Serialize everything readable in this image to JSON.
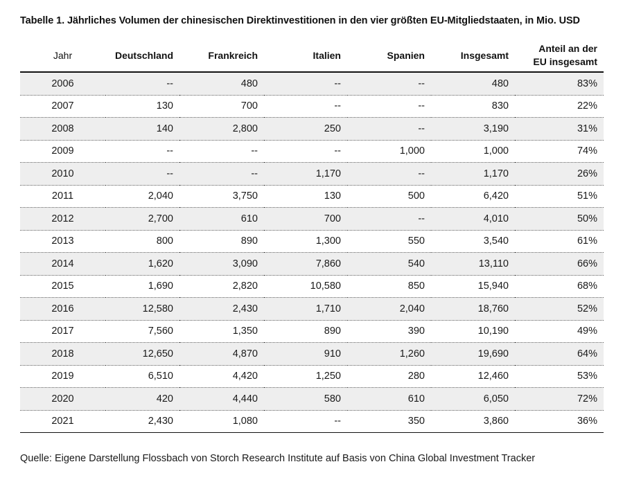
{
  "title": "Tabelle 1. Jährliches Volumen der chinesischen Direktinvestitionen in den vier größten EU-Mitgliedstaaten, in Mio. USD",
  "headers": {
    "jahr": "Jahr",
    "deutschland": "Deutschland",
    "frankreich": "Frankreich",
    "italien": "Italien",
    "spanien": "Spanien",
    "insgesamt": "Insgesamt",
    "anteil_line1": "Anteil an der",
    "anteil_line2": "EU insgesamt"
  },
  "rows": [
    {
      "jahr": "2006",
      "deutschland": "--",
      "frankreich": "480",
      "italien": "--",
      "spanien": "--",
      "insgesamt": "480",
      "anteil": "83%"
    },
    {
      "jahr": "2007",
      "deutschland": "130",
      "frankreich": "700",
      "italien": "--",
      "spanien": "--",
      "insgesamt": "830",
      "anteil": "22%"
    },
    {
      "jahr": "2008",
      "deutschland": "140",
      "frankreich": "2,800",
      "italien": "250",
      "spanien": "--",
      "insgesamt": "3,190",
      "anteil": "31%"
    },
    {
      "jahr": "2009",
      "deutschland": "--",
      "frankreich": "--",
      "italien": "--",
      "spanien": "1,000",
      "insgesamt": "1,000",
      "anteil": "74%"
    },
    {
      "jahr": "2010",
      "deutschland": "--",
      "frankreich": "--",
      "italien": "1,170",
      "spanien": "--",
      "insgesamt": "1,170",
      "anteil": "26%"
    },
    {
      "jahr": "2011",
      "deutschland": "2,040",
      "frankreich": "3,750",
      "italien": "130",
      "spanien": "500",
      "insgesamt": "6,420",
      "anteil": "51%"
    },
    {
      "jahr": "2012",
      "deutschland": "2,700",
      "frankreich": "610",
      "italien": "700",
      "spanien": "--",
      "insgesamt": "4,010",
      "anteil": "50%"
    },
    {
      "jahr": "2013",
      "deutschland": "800",
      "frankreich": "890",
      "italien": "1,300",
      "spanien": "550",
      "insgesamt": "3,540",
      "anteil": "61%"
    },
    {
      "jahr": "2014",
      "deutschland": "1,620",
      "frankreich": "3,090",
      "italien": "7,860",
      "spanien": "540",
      "insgesamt": "13,110",
      "anteil": "66%"
    },
    {
      "jahr": "2015",
      "deutschland": "1,690",
      "frankreich": "2,820",
      "italien": "10,580",
      "spanien": "850",
      "insgesamt": "15,940",
      "anteil": "68%"
    },
    {
      "jahr": "2016",
      "deutschland": "12,580",
      "frankreich": "2,430",
      "italien": "1,710",
      "spanien": "2,040",
      "insgesamt": "18,760",
      "anteil": "52%"
    },
    {
      "jahr": "2017",
      "deutschland": "7,560",
      "frankreich": "1,350",
      "italien": "890",
      "spanien": "390",
      "insgesamt": "10,190",
      "anteil": "49%"
    },
    {
      "jahr": "2018",
      "deutschland": "12,650",
      "frankreich": "4,870",
      "italien": "910",
      "spanien": "1,260",
      "insgesamt": "19,690",
      "anteil": "64%"
    },
    {
      "jahr": "2019",
      "deutschland": "6,510",
      "frankreich": "4,420",
      "italien": "1,250",
      "spanien": "280",
      "insgesamt": "12,460",
      "anteil": "53%"
    },
    {
      "jahr": "2020",
      "deutschland": "420",
      "frankreich": "4,440",
      "italien": "580",
      "spanien": "610",
      "insgesamt": "6,050",
      "anteil": "72%"
    },
    {
      "jahr": "2021",
      "deutschland": "2,430",
      "frankreich": "1,080",
      "italien": "--",
      "spanien": "350",
      "insgesamt": "3,860",
      "anteil": "36%"
    }
  ],
  "source": "Quelle: Eigene Darstellung Flossbach von Storch Research Institute auf Basis von China Global Investment Tracker",
  "colors": {
    "shade": "#eeeeee",
    "rule": "#111111"
  }
}
